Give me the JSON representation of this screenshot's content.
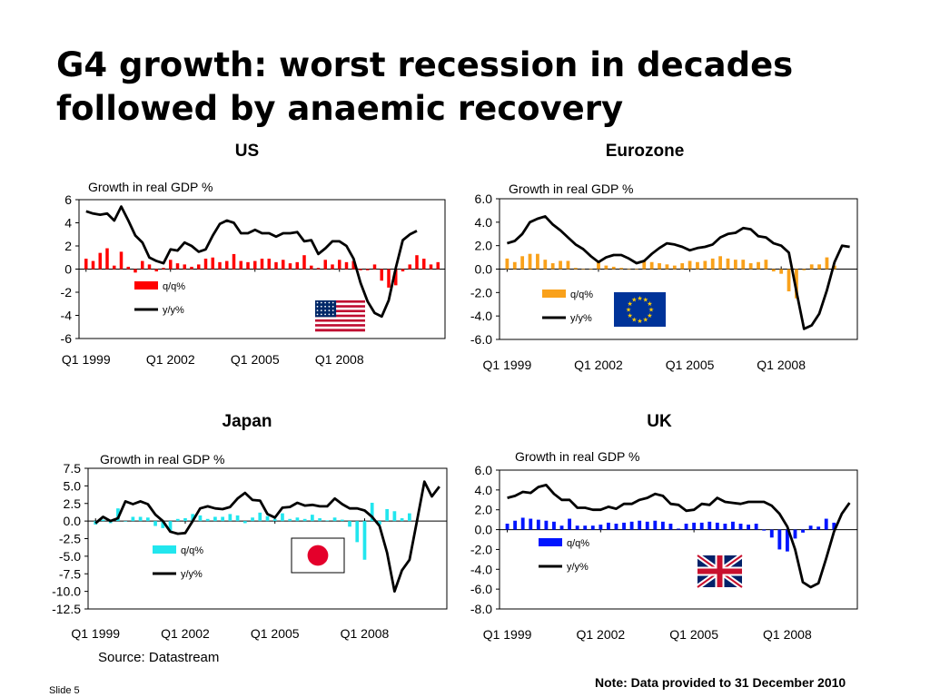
{
  "slide": {
    "title_line1": "G4 growth: worst recession in decades",
    "title_line2": "followed by anaemic recovery",
    "source": "Source: Datastream",
    "note": "Note: Data provided to 31 December 2010",
    "slide_label": "Slide 5"
  },
  "chart_data": [
    {
      "id": "us",
      "type": "bar",
      "title": "US",
      "subtitle": "Growth in real GDP %",
      "ylim": [
        -6,
        6
      ],
      "yticks": [
        "6",
        "4",
        "2",
        "0",
        "-2",
        "-4",
        "-6"
      ],
      "ytick_values": [
        6,
        4,
        2,
        0,
        -2,
        -4,
        -6
      ],
      "xtick_labels": [
        "Q1 1999",
        "Q1 2002",
        "Q1 2005",
        "Q1 2008"
      ],
      "xtick_index": [
        0,
        12,
        24,
        36
      ],
      "flag": "us-flag-icon",
      "series": [
        {
          "name": "q/q%",
          "kind": "bar",
          "color": "#ff0000",
          "values": [
            0.9,
            0.7,
            1.4,
            1.8,
            0.3,
            1.5,
            0.2,
            -0.3,
            0.7,
            0.4,
            -0.2,
            0.1,
            0.8,
            0.5,
            0.4,
            0.2,
            0.4,
            0.9,
            1.0,
            0.6,
            0.7,
            1.3,
            0.7,
            0.6,
            0.7,
            0.9,
            0.9,
            0.6,
            0.8,
            0.5,
            0.6,
            1.2,
            0.3,
            0.1,
            0.8,
            0.4,
            0.8,
            0.6,
            0.7,
            -0.1,
            -0.1,
            0.4,
            -1.0,
            -1.6,
            -1.4,
            -0.2,
            0.4,
            1.2,
            0.9,
            0.4,
            0.6
          ]
        },
        {
          "name": "y/y%",
          "kind": "line",
          "color": "#000000",
          "values": [
            5.0,
            4.8,
            4.7,
            4.8,
            4.2,
            5.4,
            4.2,
            2.9,
            2.3,
            1.0,
            0.7,
            0.5,
            1.7,
            1.6,
            2.3,
            2.0,
            1.5,
            1.7,
            2.9,
            3.9,
            4.2,
            4.0,
            3.1,
            3.1,
            3.4,
            3.1,
            3.1,
            2.8,
            3.1,
            3.1,
            3.2,
            2.4,
            2.5,
            1.3,
            1.8,
            2.4,
            2.4,
            2.0,
            0.9,
            -1.2,
            -2.8,
            -3.8,
            -4.1,
            -2.7,
            0.1,
            2.5,
            3.0,
            3.3
          ]
        }
      ]
    },
    {
      "id": "eurozone",
      "type": "bar",
      "title": "Eurozone",
      "subtitle": "Growth in real GDP %",
      "ylim": [
        -6,
        6
      ],
      "yticks": [
        "6.0",
        "4.0",
        "2.0",
        "0.0",
        "-2.0",
        "-4.0",
        "-6.0"
      ],
      "ytick_values": [
        6,
        4,
        2,
        0,
        -2,
        -4,
        -6
      ],
      "xtick_labels": [
        "Q1 1999",
        "Q1 2002",
        "Q1 2005",
        "Q1 2008"
      ],
      "xtick_index": [
        0,
        12,
        24,
        36
      ],
      "flag": "eu-flag-icon",
      "series": [
        {
          "name": "q/q%",
          "kind": "bar",
          "color": "#f9a11b",
          "values": [
            0.9,
            0.6,
            1.1,
            1.3,
            1.3,
            0.8,
            0.5,
            0.7,
            0.7,
            0.1,
            0.0,
            0.0,
            0.6,
            0.3,
            0.2,
            0.1,
            0.0,
            0.0,
            0.7,
            0.6,
            0.5,
            0.4,
            0.3,
            0.5,
            0.7,
            0.6,
            0.7,
            0.9,
            1.1,
            0.9,
            0.8,
            0.8,
            0.5,
            0.6,
            0.8,
            -0.2,
            -0.4,
            -1.9,
            -2.5,
            -0.1,
            0.4,
            0.4,
            1.0,
            0.3
          ]
        },
        {
          "name": "y/y%",
          "kind": "line",
          "color": "#000000",
          "values": [
            2.2,
            2.4,
            3.0,
            4.0,
            4.3,
            4.5,
            3.8,
            3.3,
            2.7,
            2.1,
            1.7,
            1.1,
            0.6,
            1.0,
            1.2,
            1.2,
            0.9,
            0.5,
            0.7,
            1.3,
            1.8,
            2.2,
            2.1,
            1.9,
            1.6,
            1.8,
            1.9,
            2.1,
            2.7,
            3.0,
            3.1,
            3.5,
            3.4,
            2.8,
            2.7,
            2.2,
            2.0,
            1.4,
            -1.9,
            -5.1,
            -4.8,
            -3.8,
            -1.8,
            0.6,
            2.0,
            1.9
          ]
        }
      ]
    },
    {
      "id": "japan",
      "type": "bar",
      "title": "Japan",
      "subtitle": "Growth in real GDP %",
      "ylim": [
        -12.5,
        7.5
      ],
      "yticks": [
        "7.5",
        "5.0",
        "2.5",
        "0.0",
        "-2.5",
        "-5.0",
        "-7.5",
        "-10.0",
        "-12.5"
      ],
      "ytick_values": [
        7.5,
        5,
        2.5,
        0,
        -2.5,
        -5,
        -7.5,
        -10,
        -12.5
      ],
      "xtick_labels": [
        "Q1 1999",
        "Q1 2002",
        "Q1 2005",
        "Q1 2008"
      ],
      "xtick_index": [
        0,
        12,
        24,
        36
      ],
      "flag": "japan-flag-icon",
      "series": [
        {
          "name": "q/q%",
          "kind": "bar",
          "color": "#22e6ee",
          "values": [
            -0.5,
            0.2,
            -0.3,
            1.8,
            0.0,
            0.6,
            0.6,
            0.5,
            -0.7,
            -1.0,
            -1.4,
            0.3,
            0.4,
            1.0,
            0.8,
            0.3,
            0.6,
            0.6,
            1.0,
            0.8,
            -0.3,
            0.5,
            1.2,
            0.7,
            0.3,
            1.1,
            0.3,
            0.5,
            0.3,
            0.9,
            0.4,
            0.1,
            0.5,
            0.2,
            -0.8,
            -3.0,
            -5.5,
            2.6,
            -0.5,
            1.7,
            1.4,
            0.4,
            1.1
          ]
        },
        {
          "name": "y/y%",
          "kind": "line",
          "color": "#000000",
          "values": [
            -0.3,
            0.6,
            0.0,
            0.4,
            2.8,
            2.4,
            2.8,
            2.4,
            0.9,
            0.0,
            -1.5,
            -1.8,
            -1.7,
            0.0,
            1.8,
            2.1,
            1.8,
            1.7,
            2.0,
            3.2,
            4.0,
            3.0,
            2.9,
            1.0,
            0.5,
            1.9,
            2.0,
            2.6,
            2.2,
            2.3,
            2.1,
            2.1,
            3.2,
            2.4,
            1.8,
            1.8,
            1.5,
            0.6,
            -0.7,
            -4.5,
            -10.0,
            -7.0,
            -5.5,
            0.0,
            5.6,
            3.5,
            4.9
          ]
        }
      ]
    },
    {
      "id": "uk",
      "type": "bar",
      "title": "UK",
      "subtitle": "Growth in real GDP %",
      "ylim": [
        -8,
        6
      ],
      "yticks": [
        "6.0",
        "4.0",
        "2.0",
        "0.0",
        "-2.0",
        "-4.0",
        "-6.0",
        "-8.0"
      ],
      "ytick_values": [
        6,
        4,
        2,
        0,
        -2,
        -4,
        -6,
        -8
      ],
      "xtick_labels": [
        "Q1 1999",
        "Q1 2002",
        "Q1 2005",
        "Q1 2008"
      ],
      "xtick_index": [
        0,
        12,
        24,
        36
      ],
      "flag": "uk-flag-icon",
      "series": [
        {
          "name": "q/q%",
          "kind": "bar",
          "color": "#0015ff",
          "values": [
            0.6,
            0.9,
            1.2,
            1.1,
            1.0,
            0.9,
            0.8,
            0.4,
            1.1,
            0.4,
            0.4,
            0.4,
            0.5,
            0.7,
            0.6,
            0.7,
            0.8,
            0.9,
            0.8,
            0.9,
            0.8,
            0.6,
            0.1,
            0.6,
            0.7,
            0.7,
            0.8,
            0.7,
            0.6,
            0.8,
            0.6,
            0.5,
            0.6,
            -0.1,
            -0.8,
            -2.0,
            -2.2,
            -0.9,
            -0.3,
            0.4,
            0.3,
            1.1,
            0.7
          ]
        },
        {
          "name": "y/y%",
          "kind": "line",
          "color": "#000000",
          "values": [
            3.2,
            3.4,
            3.8,
            3.7,
            4.3,
            4.5,
            3.6,
            3.0,
            3.0,
            2.2,
            2.2,
            2.0,
            2.0,
            2.3,
            2.1,
            2.6,
            2.6,
            3.0,
            3.2,
            3.6,
            3.4,
            2.6,
            2.5,
            1.9,
            2.0,
            2.6,
            2.5,
            3.2,
            2.8,
            2.7,
            2.6,
            2.8,
            2.8,
            2.8,
            2.4,
            1.6,
            0.3,
            -2.0,
            -5.3,
            -5.8,
            -5.4,
            -2.9,
            -0.2,
            1.6,
            2.7
          ]
        }
      ]
    }
  ]
}
